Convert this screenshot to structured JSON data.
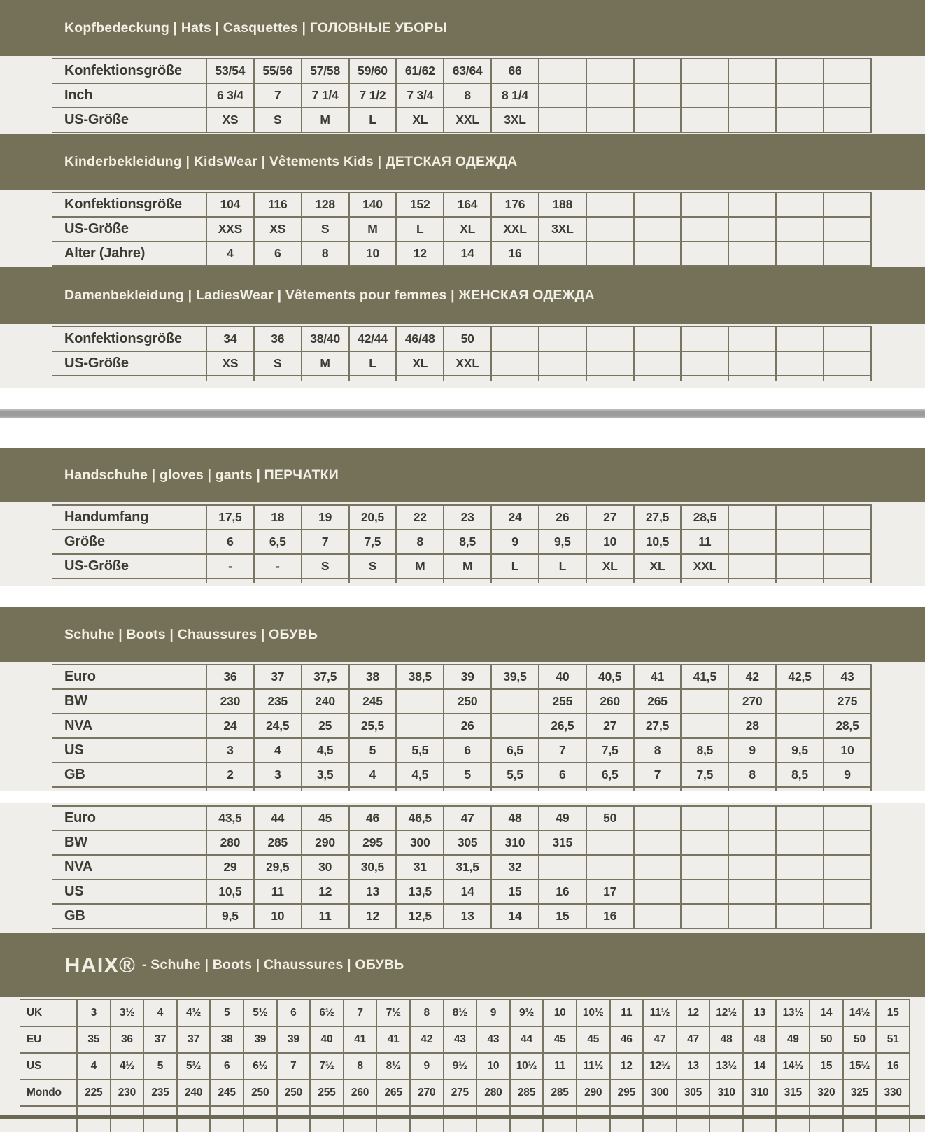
{
  "theme": {
    "olive_band": "#757058",
    "band_text": "#f2f0e4",
    "grid_border": "#7a7560",
    "page_background": "#efeeea",
    "cell_text": "#3c3b33",
    "divider_gray": "#9c9c9e",
    "bottom_strip": "#6b6750"
  },
  "sections": [
    {
      "key": "hats",
      "header": "Kopfbedeckung | Hats | Casquettes | ГОЛОВНЫЕ УБОРЫ",
      "tables": [
        {
          "rows": [
            {
              "label": "Konfektionsgröße",
              "values": [
                "53/54",
                "55/56",
                "57/58",
                "59/60",
                "61/62",
                "63/64",
                "66"
              ]
            },
            {
              "label": "Inch",
              "values": [
                "6 3/4",
                "7",
                "7 1/4",
                "7 1/2",
                "7 3/4",
                "8",
                "8 1/4"
              ]
            },
            {
              "label": "US-Größe",
              "values": [
                "XS",
                "S",
                "M",
                "L",
                "XL",
                "XXL",
                "3XL"
              ]
            }
          ]
        }
      ]
    },
    {
      "key": "kids",
      "header": "Kinderbekleidung | KidsWear | Vêtements Kids | ДЕТСКАЯ ОДЕЖДА",
      "tables": [
        {
          "rows": [
            {
              "label": "Konfektionsgröße",
              "values": [
                "104",
                "116",
                "128",
                "140",
                "152",
                "164",
                "176",
                "188"
              ]
            },
            {
              "label": "US-Größe",
              "values": [
                "XXS",
                "XS",
                "S",
                "M",
                "L",
                "XL",
                "XXL",
                "3XL"
              ]
            },
            {
              "label": "Alter (Jahre)",
              "values": [
                "4",
                "6",
                "8",
                "10",
                "12",
                "14",
                "16"
              ]
            }
          ]
        }
      ]
    },
    {
      "key": "ladies",
      "header": "Damenbekleidung | LadiesWear | Vêtements pour femmes | ЖЕНСКАЯ ОДЕЖДА",
      "tables": [
        {
          "rows": [
            {
              "label": "Konfektionsgröße",
              "values": [
                "34",
                "36",
                "38/40",
                "42/44",
                "46/48",
                "50"
              ]
            },
            {
              "label": "US-Größe",
              "values": [
                "XS",
                "S",
                "M",
                "L",
                "XL",
                "XXL"
              ]
            }
          ]
        }
      ]
    },
    {
      "key": "gloves",
      "header": "Handschuhe | gloves | gants | ПЕРЧАТКИ",
      "tables": [
        {
          "rows": [
            {
              "label": "Handumfang",
              "values": [
                "17,5",
                "18",
                "19",
                "20,5",
                "22",
                "23",
                "24",
                "26",
                "27",
                "27,5",
                "28,5"
              ]
            },
            {
              "label": "Größe",
              "values": [
                "6",
                "6,5",
                "7",
                "7,5",
                "8",
                "8,5",
                "9",
                "9,5",
                "10",
                "10,5",
                "11"
              ]
            },
            {
              "label": "US-Größe",
              "values": [
                "-",
                "-",
                "S",
                "S",
                "M",
                "M",
                "L",
                "L",
                "XL",
                "XL",
                "XXL"
              ]
            }
          ]
        }
      ]
    },
    {
      "key": "boots",
      "header": "Schuhe | Boots | Chaussures | ОБУВЬ",
      "tables": [
        {
          "rows": [
            {
              "label": "Euro",
              "values": [
                "36",
                "37",
                "37,5",
                "38",
                "38,5",
                "39",
                "39,5",
                "40",
                "40,5",
                "41",
                "41,5",
                "42",
                "42,5",
                "43"
              ]
            },
            {
              "label": "BW",
              "values": [
                "230",
                "235",
                "240",
                "245",
                "",
                "250",
                "",
                "255",
                "260",
                "265",
                "",
                "270",
                "",
                "275"
              ]
            },
            {
              "label": "NVA",
              "values": [
                "24",
                "24,5",
                "25",
                "25,5",
                "",
                "26",
                "",
                "26,5",
                "27",
                "27,5",
                "",
                "28",
                "",
                "28,5"
              ]
            },
            {
              "label": "US",
              "values": [
                "3",
                "4",
                "4,5",
                "5",
                "5,5",
                "6",
                "6,5",
                "7",
                "7,5",
                "8",
                "8,5",
                "9",
                "9,5",
                "10"
              ]
            },
            {
              "label": "GB",
              "values": [
                "2",
                "3",
                "3,5",
                "4",
                "4,5",
                "5",
                "5,5",
                "6",
                "6,5",
                "7",
                "7,5",
                "8",
                "8,5",
                "9"
              ]
            }
          ]
        },
        {
          "rows": [
            {
              "label": "Euro",
              "values": [
                "43,5",
                "44",
                "45",
                "46",
                "46,5",
                "47",
                "48",
                "49",
                "50"
              ]
            },
            {
              "label": "BW",
              "values": [
                "280",
                "285",
                "290",
                "295",
                "300",
                "305",
                "310",
                "315"
              ]
            },
            {
              "label": "NVA",
              "values": [
                "29",
                "29,5",
                "30",
                "30,5",
                "31",
                "31,5",
                "32"
              ]
            },
            {
              "label": "US",
              "values": [
                "10,5",
                "11",
                "12",
                "13",
                "13,5",
                "14",
                "15",
                "16",
                "17"
              ]
            },
            {
              "label": "GB",
              "values": [
                "9,5",
                "10",
                "11",
                "12",
                "12,5",
                "13",
                "14",
                "15",
                "16"
              ]
            }
          ]
        }
      ]
    },
    {
      "key": "haix",
      "header_brand": "HAIX®",
      "header_rest": "- Schuhe | Boots | Chaussures | ОБУВЬ",
      "tables": [
        {
          "rows": [
            {
              "label": "UK",
              "values": [
                "3",
                "3½",
                "4",
                "4½",
                "5",
                "5½",
                "6",
                "6½",
                "7",
                "7½",
                "8",
                "8½",
                "9",
                "9½",
                "10",
                "10½",
                "11",
                "11½",
                "12",
                "12½",
                "13",
                "13½",
                "14",
                "14½",
                "15"
              ]
            },
            {
              "label": "EU",
              "values": [
                "35",
                "36",
                "37",
                "37",
                "38",
                "39",
                "39",
                "40",
                "41",
                "41",
                "42",
                "43",
                "43",
                "44",
                "45",
                "45",
                "46",
                "47",
                "47",
                "48",
                "48",
                "49",
                "50",
                "50",
                "51"
              ]
            },
            {
              "label": "US",
              "values": [
                "4",
                "4½",
                "5",
                "5½",
                "6",
                "6½",
                "7",
                "7½",
                "8",
                "8½",
                "9",
                "9½",
                "10",
                "10½",
                "11",
                "11½",
                "12",
                "12½",
                "13",
                "13½",
                "14",
                "14½",
                "15",
                "15½",
                "16"
              ]
            },
            {
              "label": "Mondo",
              "values": [
                "225",
                "230",
                "235",
                "240",
                "245",
                "250",
                "250",
                "255",
                "260",
                "265",
                "270",
                "275",
                "280",
                "285",
                "285",
                "290",
                "295",
                "300",
                "305",
                "310",
                "310",
                "315",
                "320",
                "325",
                "330"
              ]
            }
          ]
        }
      ]
    }
  ]
}
